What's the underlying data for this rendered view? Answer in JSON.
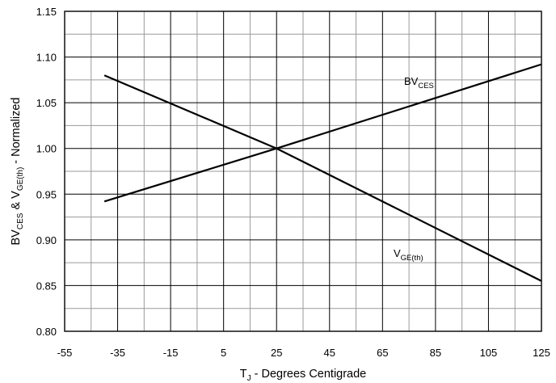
{
  "chart_data": {
    "type": "line",
    "xlim": [
      -55,
      125
    ],
    "ylim": [
      0.8,
      1.15
    ],
    "x_ticks": [
      -55,
      -35,
      -15,
      5,
      25,
      45,
      65,
      85,
      105,
      125
    ],
    "y_ticks": [
      0.8,
      0.85,
      0.9,
      0.95,
      1.0,
      1.05,
      1.1,
      1.15
    ],
    "x_tick_labels": [
      "-55",
      "-35",
      "-15",
      "5",
      "25",
      "45",
      "65",
      "85",
      "105",
      "125"
    ],
    "y_tick_labels": [
      "0.80",
      "0.85",
      "0.90",
      "0.95",
      "1.00",
      "1.05",
      "1.10",
      "1.15"
    ],
    "grid": true,
    "xlabel": {
      "main": "T",
      "sub": "J",
      "rest": " - Degrees Centigrade"
    },
    "ylabel": {
      "p1": "BV",
      "s1": "CES",
      "p2": " & V",
      "s2": "GE(th)",
      "p3": " - Normalized"
    },
    "series": [
      {
        "label_main": "BV",
        "label_sub": "CES",
        "x": [
          -40,
          25,
          125
        ],
        "y": [
          0.942,
          1.0,
          1.092
        ]
      },
      {
        "label_main": "V",
        "label_sub": "GE(th)",
        "x": [
          -40,
          25,
          125
        ],
        "y": [
          1.08,
          1.0,
          0.855
        ]
      }
    ]
  }
}
